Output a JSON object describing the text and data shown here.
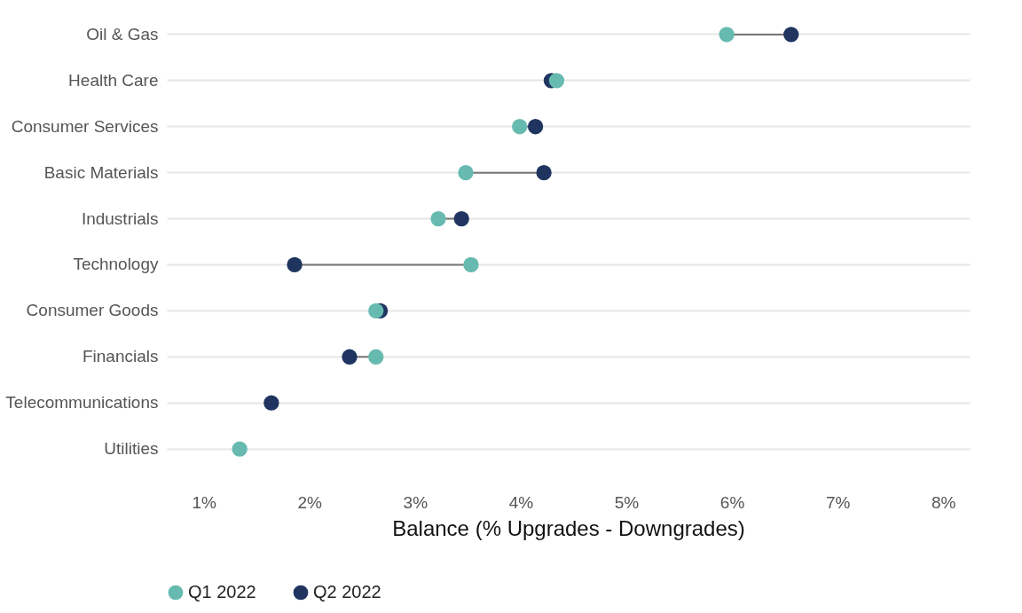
{
  "chart_data": {
    "type": "scatter",
    "xlabel": "Balance (% Upgrades - Downgrades)",
    "categories": [
      "Oil & Gas",
      "Health Care",
      "Consumer Services",
      "Basic Materials",
      "Industrials",
      "Technology",
      "Consumer Goods",
      "Financials",
      "Telecommunications",
      "Utilities"
    ],
    "series": [
      {
        "name": "Q1 2022",
        "color": "#66bab0",
        "values": [
          5.95,
          4.34,
          3.99,
          3.48,
          3.22,
          3.53,
          2.63,
          2.63,
          null,
          1.34
        ]
      },
      {
        "name": "Q2 2022",
        "color": "#1f3560",
        "values": [
          6.56,
          4.29,
          4.14,
          4.22,
          3.44,
          1.86,
          2.67,
          2.38,
          1.64,
          null
        ]
      }
    ],
    "xlim": [
      0.65,
      8.25
    ],
    "xticks": [
      {
        "value": 1,
        "label": "1%"
      },
      {
        "value": 2,
        "label": "2%"
      },
      {
        "value": 3,
        "label": "3%"
      },
      {
        "value": 4,
        "label": "4%"
      },
      {
        "value": 5,
        "label": "5%"
      },
      {
        "value": 6,
        "label": "6%"
      },
      {
        "value": 7,
        "label": "7%"
      },
      {
        "value": 8,
        "label": "8%"
      }
    ],
    "grid": "y",
    "legend": "bottom",
    "marker": "circle",
    "orientation": "horizontal"
  }
}
